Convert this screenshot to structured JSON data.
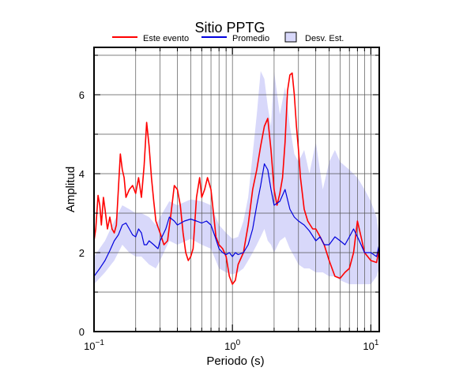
{
  "chart_data": {
    "type": "line",
    "title": "Sitio PPTG",
    "xlabel": "Periodo (s)",
    "ylabel": "Amplitud",
    "xscale": "log",
    "xlim": [
      0.1,
      11.5
    ],
    "ylim": [
      0,
      7.2
    ],
    "grid": true,
    "legend_position": "top",
    "x_ticks": [
      {
        "value": 0.1,
        "base": "10",
        "exp": "−1"
      },
      {
        "value": 1,
        "base": "10",
        "exp": "0"
      },
      {
        "value": 10,
        "base": "10",
        "exp": "1"
      }
    ],
    "y_ticks": [
      0,
      2,
      4,
      6
    ],
    "legend": [
      {
        "label": "Este evento",
        "kind": "line",
        "color": "#ff0000"
      },
      {
        "label": "Promedio",
        "kind": "line",
        "color": "#0000dd"
      },
      {
        "label": "Desv. Est.",
        "kind": "box",
        "color": "#d8d8fa"
      }
    ],
    "series": [
      {
        "name": "Este evento",
        "color": "#ff0000",
        "points": [
          [
            0.1,
            2.3
          ],
          [
            0.103,
            2.6
          ],
          [
            0.107,
            3.45
          ],
          [
            0.11,
            3.2
          ],
          [
            0.113,
            2.7
          ],
          [
            0.117,
            3.4
          ],
          [
            0.12,
            3.1
          ],
          [
            0.125,
            2.6
          ],
          [
            0.13,
            2.9
          ],
          [
            0.135,
            2.6
          ],
          [
            0.14,
            2.5
          ],
          [
            0.145,
            2.7
          ],
          [
            0.15,
            3.6
          ],
          [
            0.155,
            4.5
          ],
          [
            0.16,
            4.1
          ],
          [
            0.165,
            3.9
          ],
          [
            0.17,
            3.4
          ],
          [
            0.18,
            3.6
          ],
          [
            0.19,
            3.7
          ],
          [
            0.2,
            3.5
          ],
          [
            0.21,
            3.9
          ],
          [
            0.22,
            3.4
          ],
          [
            0.23,
            4.2
          ],
          [
            0.24,
            5.3
          ],
          [
            0.25,
            4.7
          ],
          [
            0.26,
            3.9
          ],
          [
            0.27,
            3.3
          ],
          [
            0.28,
            2.8
          ],
          [
            0.3,
            2.5
          ],
          [
            0.32,
            2.2
          ],
          [
            0.34,
            2.3
          ],
          [
            0.36,
            3.0
          ],
          [
            0.38,
            3.7
          ],
          [
            0.4,
            3.6
          ],
          [
            0.42,
            3.2
          ],
          [
            0.44,
            2.5
          ],
          [
            0.46,
            2.0
          ],
          [
            0.48,
            1.8
          ],
          [
            0.5,
            1.9
          ],
          [
            0.52,
            2.1
          ],
          [
            0.55,
            3.4
          ],
          [
            0.58,
            3.9
          ],
          [
            0.6,
            3.4
          ],
          [
            0.63,
            3.6
          ],
          [
            0.66,
            3.9
          ],
          [
            0.7,
            3.6
          ],
          [
            0.73,
            3.0
          ],
          [
            0.76,
            2.4
          ],
          [
            0.8,
            2.2
          ],
          [
            0.85,
            2.1
          ],
          [
            0.9,
            1.9
          ],
          [
            0.95,
            1.4
          ],
          [
            1.0,
            1.2
          ],
          [
            1.05,
            1.3
          ],
          [
            1.1,
            1.7
          ],
          [
            1.2,
            2.0
          ],
          [
            1.3,
            2.7
          ],
          [
            1.4,
            3.6
          ],
          [
            1.5,
            4.1
          ],
          [
            1.6,
            4.7
          ],
          [
            1.7,
            5.2
          ],
          [
            1.8,
            5.4
          ],
          [
            1.9,
            4.6
          ],
          [
            2.0,
            3.6
          ],
          [
            2.1,
            3.2
          ],
          [
            2.2,
            3.5
          ],
          [
            2.3,
            3.9
          ],
          [
            2.4,
            4.8
          ],
          [
            2.5,
            6.1
          ],
          [
            2.6,
            6.5
          ],
          [
            2.7,
            6.55
          ],
          [
            2.8,
            6.0
          ],
          [
            2.9,
            5.2
          ],
          [
            3.0,
            4.6
          ],
          [
            3.1,
            3.9
          ],
          [
            3.3,
            3.1
          ],
          [
            3.5,
            2.8
          ],
          [
            3.8,
            2.6
          ],
          [
            4.0,
            2.6
          ],
          [
            4.3,
            2.4
          ],
          [
            4.6,
            2.2
          ],
          [
            5.0,
            1.8
          ],
          [
            5.5,
            1.4
          ],
          [
            6.0,
            1.35
          ],
          [
            6.5,
            1.5
          ],
          [
            7.0,
            1.6
          ],
          [
            7.5,
            2.0
          ],
          [
            8.0,
            2.8
          ],
          [
            8.5,
            2.4
          ],
          [
            9.0,
            2.0
          ],
          [
            10.0,
            1.8
          ],
          [
            11.0,
            1.75
          ],
          [
            11.5,
            2.1
          ]
        ]
      },
      {
        "name": "Promedio",
        "color": "#0000dd",
        "points": [
          [
            0.1,
            1.4
          ],
          [
            0.11,
            1.6
          ],
          [
            0.12,
            1.8
          ],
          [
            0.13,
            2.05
          ],
          [
            0.14,
            2.3
          ],
          [
            0.15,
            2.45
          ],
          [
            0.16,
            2.7
          ],
          [
            0.17,
            2.75
          ],
          [
            0.18,
            2.6
          ],
          [
            0.19,
            2.45
          ],
          [
            0.2,
            2.4
          ],
          [
            0.21,
            2.6
          ],
          [
            0.22,
            2.5
          ],
          [
            0.23,
            2.2
          ],
          [
            0.24,
            2.2
          ],
          [
            0.25,
            2.3
          ],
          [
            0.27,
            2.2
          ],
          [
            0.29,
            2.1
          ],
          [
            0.3,
            2.3
          ],
          [
            0.33,
            2.6
          ],
          [
            0.35,
            2.9
          ],
          [
            0.38,
            2.8
          ],
          [
            0.4,
            2.7
          ],
          [
            0.45,
            2.8
          ],
          [
            0.5,
            2.85
          ],
          [
            0.55,
            2.8
          ],
          [
            0.6,
            2.75
          ],
          [
            0.65,
            2.8
          ],
          [
            0.7,
            2.7
          ],
          [
            0.75,
            2.4
          ],
          [
            0.8,
            2.1
          ],
          [
            0.85,
            2.0
          ],
          [
            0.9,
            1.95
          ],
          [
            0.95,
            2.0
          ],
          [
            1.0,
            1.9
          ],
          [
            1.05,
            2.0
          ],
          [
            1.1,
            1.95
          ],
          [
            1.2,
            2.0
          ],
          [
            1.3,
            2.2
          ],
          [
            1.4,
            2.6
          ],
          [
            1.5,
            3.2
          ],
          [
            1.6,
            3.7
          ],
          [
            1.7,
            4.25
          ],
          [
            1.8,
            4.1
          ],
          [
            1.9,
            3.6
          ],
          [
            2.0,
            3.2
          ],
          [
            2.2,
            3.3
          ],
          [
            2.4,
            3.6
          ],
          [
            2.6,
            3.1
          ],
          [
            2.8,
            2.9
          ],
          [
            3.0,
            2.8
          ],
          [
            3.3,
            2.7
          ],
          [
            3.6,
            2.55
          ],
          [
            4.0,
            2.3
          ],
          [
            4.3,
            2.4
          ],
          [
            4.6,
            2.2
          ],
          [
            5.0,
            2.2
          ],
          [
            5.5,
            2.4
          ],
          [
            6.0,
            2.3
          ],
          [
            6.5,
            2.2
          ],
          [
            7.0,
            2.4
          ],
          [
            7.5,
            2.6
          ],
          [
            8.0,
            2.4
          ],
          [
            8.5,
            2.2
          ],
          [
            9.0,
            2.0
          ],
          [
            10.0,
            2.0
          ],
          [
            11.0,
            1.9
          ],
          [
            11.5,
            2.2
          ]
        ]
      },
      {
        "name": "Desv. Est.",
        "type": "area",
        "color": "#d8d8fa",
        "upper": [
          [
            0.1,
            1.9
          ],
          [
            0.12,
            2.3
          ],
          [
            0.14,
            2.8
          ],
          [
            0.16,
            3.2
          ],
          [
            0.18,
            3.1
          ],
          [
            0.2,
            3.0
          ],
          [
            0.22,
            3.0
          ],
          [
            0.25,
            2.9
          ],
          [
            0.28,
            2.7
          ],
          [
            0.3,
            2.9
          ],
          [
            0.35,
            3.3
          ],
          [
            0.4,
            3.2
          ],
          [
            0.5,
            3.35
          ],
          [
            0.6,
            3.3
          ],
          [
            0.7,
            3.2
          ],
          [
            0.8,
            2.7
          ],
          [
            0.9,
            2.5
          ],
          [
            1.0,
            2.35
          ],
          [
            1.1,
            2.4
          ],
          [
            1.2,
            2.8
          ],
          [
            1.3,
            3.4
          ],
          [
            1.4,
            4.5
          ],
          [
            1.5,
            5.5
          ],
          [
            1.6,
            6.6
          ],
          [
            1.7,
            6.4
          ],
          [
            1.8,
            5.7
          ],
          [
            1.9,
            5.2
          ],
          [
            2.0,
            6.6
          ],
          [
            2.2,
            5.5
          ],
          [
            2.4,
            6.2
          ],
          [
            2.6,
            5.2
          ],
          [
            2.8,
            4.5
          ],
          [
            3.0,
            4.3
          ],
          [
            3.3,
            4.6
          ],
          [
            3.6,
            4.0
          ],
          [
            4.0,
            4.8
          ],
          [
            4.5,
            3.6
          ],
          [
            5.0,
            4.3
          ],
          [
            5.5,
            4.6
          ],
          [
            6.0,
            4.3
          ],
          [
            7.0,
            4.1
          ],
          [
            8.0,
            3.9
          ],
          [
            9.0,
            3.6
          ],
          [
            10.0,
            3.3
          ],
          [
            11.0,
            2.9
          ],
          [
            11.5,
            2.4
          ]
        ],
        "lower": [
          [
            0.1,
            1.2
          ],
          [
            0.12,
            1.5
          ],
          [
            0.14,
            1.8
          ],
          [
            0.16,
            2.2
          ],
          [
            0.18,
            2.0
          ],
          [
            0.2,
            1.9
          ],
          [
            0.22,
            1.9
          ],
          [
            0.25,
            1.7
          ],
          [
            0.28,
            1.6
          ],
          [
            0.3,
            1.8
          ],
          [
            0.35,
            2.3
          ],
          [
            0.4,
            2.2
          ],
          [
            0.5,
            2.35
          ],
          [
            0.6,
            2.2
          ],
          [
            0.7,
            2.1
          ],
          [
            0.8,
            1.6
          ],
          [
            0.9,
            1.5
          ],
          [
            1.0,
            1.45
          ],
          [
            1.1,
            1.5
          ],
          [
            1.2,
            1.6
          ],
          [
            1.3,
            1.8
          ],
          [
            1.4,
            2.0
          ],
          [
            1.5,
            2.2
          ],
          [
            1.6,
            2.4
          ],
          [
            1.7,
            2.6
          ],
          [
            1.8,
            2.3
          ],
          [
            1.9,
            2.2
          ],
          [
            2.0,
            2.0
          ],
          [
            2.2,
            2.3
          ],
          [
            2.4,
            2.4
          ],
          [
            2.6,
            2.1
          ],
          [
            2.8,
            1.9
          ],
          [
            3.0,
            1.7
          ],
          [
            3.3,
            1.6
          ],
          [
            3.6,
            1.6
          ],
          [
            4.0,
            1.5
          ],
          [
            4.5,
            1.5
          ],
          [
            5.0,
            1.4
          ],
          [
            5.5,
            1.4
          ],
          [
            6.0,
            1.3
          ],
          [
            7.0,
            1.2
          ],
          [
            8.0,
            1.2
          ],
          [
            9.0,
            1.2
          ],
          [
            10.0,
            1.2
          ],
          [
            11.0,
            1.4
          ],
          [
            11.5,
            1.6
          ]
        ]
      }
    ]
  }
}
